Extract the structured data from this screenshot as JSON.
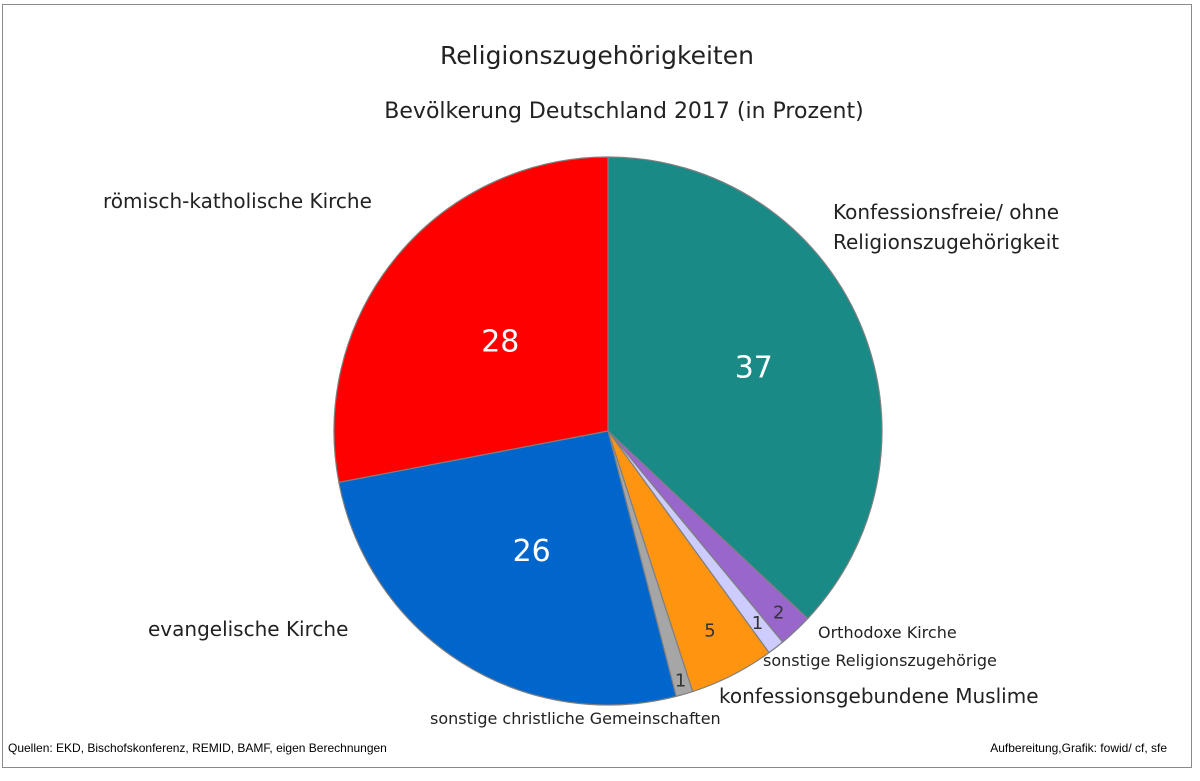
{
  "chart_data": {
    "type": "pie",
    "title": "Religionszugehörigkeiten",
    "subtitle": "Bevölkerung Deutschland 2017 (in Prozent)",
    "slices": [
      {
        "label": "Konfessionsfreie/ ohne Religionszugehörigkeit",
        "value": 37,
        "color": "#1a8a87",
        "value_color": "#ffffff"
      },
      {
        "label": "Orthodoxe Kirche",
        "value": 2,
        "color": "#9966cc",
        "value_color": "#333333"
      },
      {
        "label": "sonstige Religionszugehörige",
        "value": 1,
        "color": "#ccccff",
        "value_color": "#333333"
      },
      {
        "label": "konfessionsgebundene Muslime",
        "value": 5,
        "color": "#ff9411",
        "value_color": "#333333"
      },
      {
        "label": "sonstige christliche Gemeinschaften",
        "value": 1,
        "color": "#a6a6a6",
        "value_color": "#333333"
      },
      {
        "label": "evangelische Kirche",
        "value": 26,
        "color": "#0066cc",
        "value_color": "#ffffff"
      },
      {
        "label": "römisch-katholische Kirche",
        "value": 28,
        "color": "#ff0000",
        "value_color": "#ffffff"
      }
    ]
  },
  "footer": {
    "source": "Quellen: EKD, Bischofskonferenz, REMID, BAMF, eigen Berechnungen",
    "credit": "Aufbereitung,Grafik: fowid/ cf, sfe"
  }
}
